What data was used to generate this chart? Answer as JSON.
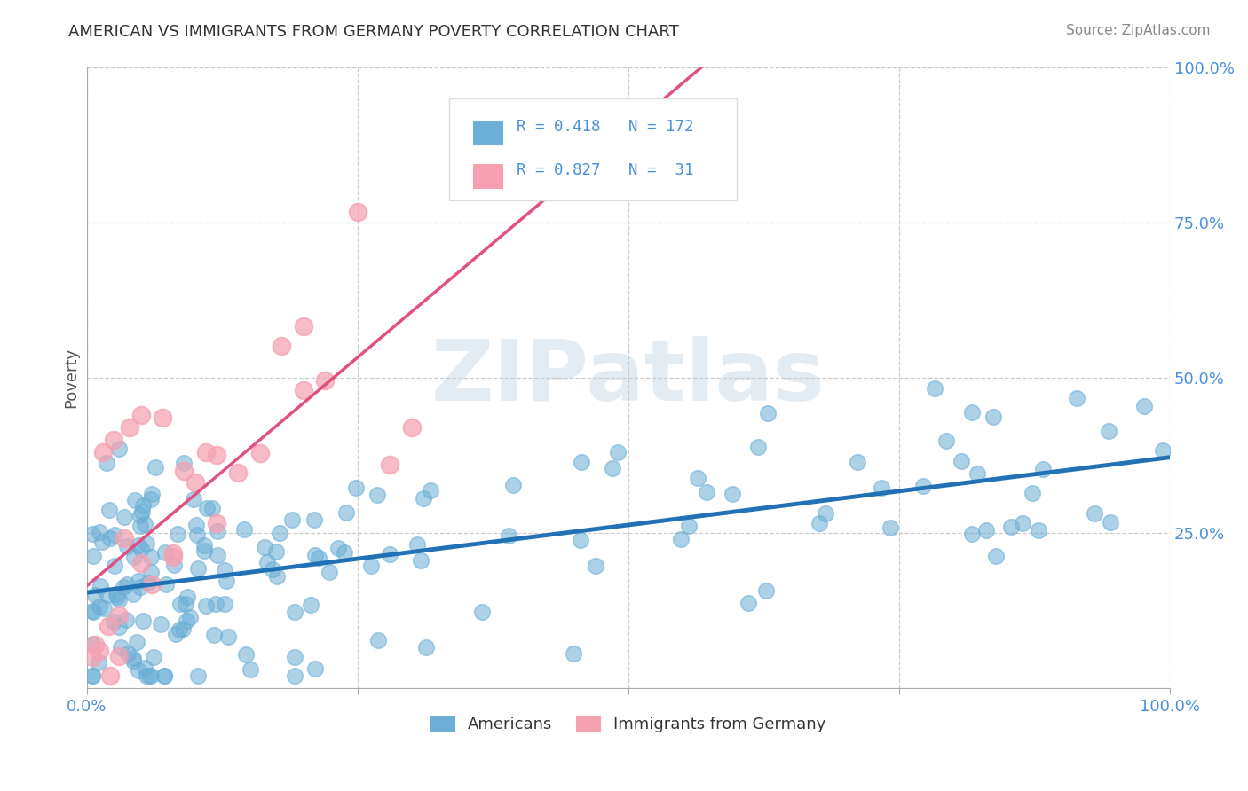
{
  "title": "AMERICAN VS IMMIGRANTS FROM GERMANY POVERTY CORRELATION CHART",
  "source": "Source: ZipAtlas.com",
  "ylabel": "Poverty",
  "americans_color": "#6baed6",
  "germany_color": "#f4a0b0",
  "americans_line_color": "#2171b5",
  "germany_line_color": "#e05080",
  "R_americans": 0.418,
  "N_americans": 172,
  "R_germany": 0.827,
  "N_germany": 31,
  "watermark": "ZIPatlas",
  "legend_label_americans": "Americans",
  "legend_label_germany": "Immigrants from Germany",
  "tick_color": "#4a90d9",
  "title_color": "#333333",
  "source_color": "#888888"
}
